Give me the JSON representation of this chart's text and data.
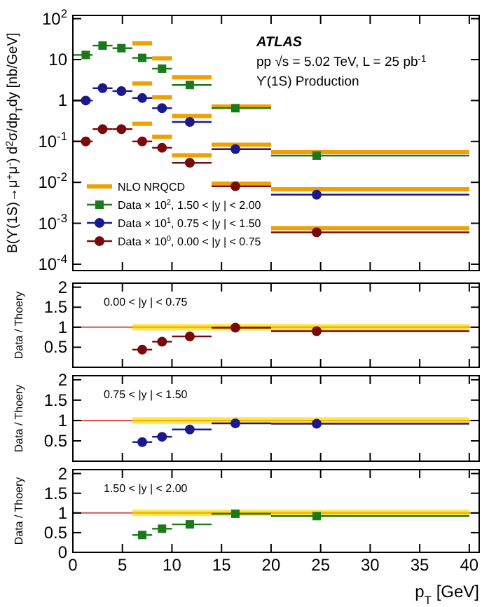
{
  "chart_data": [
    {
      "type": "scatter",
      "ylabel": "B(ϒ(1S)→μ$^{+}$μ$^{-}$) d$^{2}$σ/dp$_{T}$dy [nb/GeV]",
      "annotations": [
        "ATLAS",
        "pp √s = 5.02 TeV, L = 25 pb$^{-1}$",
        "ϒ(1S) Production"
      ],
      "log": true,
      "legend": "bottom left",
      "tick_labels": "y",
      "xlim": [
        0,
        41
      ],
      "ylim": [
        7e-05,
        120
      ],
      "yticks": [
        {
          "value": 0.0001,
          "label": "10$^{-4}$"
        },
        {
          "value": 0.001,
          "label": "10$^{-3}$"
        },
        {
          "value": 0.01,
          "label": "10$^{-2}$"
        },
        {
          "value": 0.1,
          "label": "10$^{-1}$"
        },
        1,
        10,
        {
          "value": 100,
          "label": "10$^{2}$"
        }
      ],
      "xticks": [
        0,
        5,
        10,
        15,
        20,
        25,
        30,
        35,
        40
      ],
      "series": [
        {
          "name": "NLO NRQCD",
          "type": "line",
          "color": "#f0a000",
          "x": [
            6,
            8
          ],
          "values": [
            25,
            25
          ]
        },
        {
          "type": "line",
          "color": "#f0a000",
          "x": [
            8,
            10
          ],
          "values": [
            10.7,
            10.7
          ]
        },
        {
          "type": "line",
          "color": "#f0a000",
          "x": [
            10,
            14
          ],
          "values": [
            3.7,
            3.7
          ]
        },
        {
          "type": "line",
          "color": "#f0a000",
          "x": [
            14,
            20
          ],
          "values": [
            0.71,
            0.71
          ]
        },
        {
          "type": "line",
          "color": "#f0a000",
          "x": [
            20,
            40
          ],
          "values": [
            0.055,
            0.055
          ]
        },
        {
          "type": "line",
          "color": "#f0a000",
          "x": [
            6,
            8
          ],
          "values": [
            2.6,
            2.6
          ]
        },
        {
          "type": "line",
          "color": "#f0a000",
          "x": [
            8,
            10
          ],
          "values": [
            1.2,
            1.2
          ]
        },
        {
          "type": "line",
          "color": "#f0a000",
          "x": [
            10,
            14
          ],
          "values": [
            0.42,
            0.42
          ]
        },
        {
          "type": "line",
          "color": "#f0a000",
          "x": [
            14,
            20
          ],
          "values": [
            0.083,
            0.083
          ]
        },
        {
          "type": "line",
          "color": "#f0a000",
          "x": [
            20,
            40
          ],
          "values": [
            0.0068,
            0.0068
          ]
        },
        {
          "type": "line",
          "color": "#f0a000",
          "x": [
            6,
            8
          ],
          "values": [
            0.27,
            0.27
          ]
        },
        {
          "type": "line",
          "color": "#f0a000",
          "x": [
            8,
            10
          ],
          "values": [
            0.13,
            0.13
          ]
        },
        {
          "type": "line",
          "color": "#f0a000",
          "x": [
            10,
            14
          ],
          "values": [
            0.046,
            0.046
          ]
        },
        {
          "type": "line",
          "color": "#f0a000",
          "x": [
            14,
            20
          ],
          "values": [
            0.0093,
            0.0093
          ]
        },
        {
          "type": "line",
          "color": "#f0a000",
          "x": [
            20,
            40
          ],
          "values": [
            0.00076,
            0.00076
          ]
        },
        {
          "name": "Data × 10$^{2}$, 1.50 < |y | < 2.00",
          "marker": "square",
          "color": "#1a7a1a",
          "x": [
            1.3,
            3,
            4.9,
            7,
            9,
            11.8,
            16.4,
            24.6
          ],
          "xerrors": [
            [
              0,
              2
            ],
            [
              2,
              4
            ],
            [
              4,
              6
            ],
            [
              6,
              8
            ],
            [
              8,
              10
            ],
            [
              10,
              14
            ],
            [
              14,
              20
            ],
            [
              20,
              40
            ]
          ],
          "values": [
            13,
            22,
            19,
            11,
            6,
            2.4,
            0.65,
            0.045
          ]
        },
        {
          "name": "Data × 10$^{1}$, 0.75 < |y | < 1.50",
          "marker": "circle",
          "color": "#1a1a8c",
          "x": [
            1.3,
            3,
            4.9,
            7,
            9,
            11.8,
            16.4,
            24.6
          ],
          "xerrors": [
            [
              0,
              2
            ],
            [
              2,
              4
            ],
            [
              4,
              6
            ],
            [
              6,
              8
            ],
            [
              8,
              10
            ],
            [
              10,
              14
            ],
            [
              14,
              20
            ],
            [
              20,
              40
            ]
          ],
          "values": [
            1.0,
            2.0,
            1.7,
            1.15,
            0.65,
            0.3,
            0.065,
            0.005
          ]
        },
        {
          "name": "Data × 10$^{0}$, 0.00 < |y | < 0.75",
          "marker": "circle",
          "color": "#7a0a0a",
          "x": [
            1.3,
            3,
            4.9,
            7,
            9,
            11.8,
            16.4,
            24.6
          ],
          "xerrors": [
            [
              0,
              2
            ],
            [
              2,
              4
            ],
            [
              4,
              6
            ],
            [
              6,
              8
            ],
            [
              8,
              10
            ],
            [
              10,
              14
            ],
            [
              14,
              20
            ],
            [
              20,
              40
            ]
          ],
          "values": [
            0.1,
            0.2,
            0.2,
            0.1,
            0.07,
            0.03,
            0.008,
            0.0006
          ]
        }
      ]
    },
    {
      "type": "scatter",
      "ylabel": "Data / Thoery",
      "annotations": [
        "0.00 < |y | < 0.75"
      ],
      "tick_labels": "y",
      "xlim": [
        0,
        41
      ],
      "ylim": [
        0,
        2.1
      ],
      "yticks": [
        0.5,
        1,
        1.5,
        2
      ],
      "xticks": [
        0,
        5,
        10,
        15,
        20,
        25,
        30,
        35,
        40
      ],
      "ref_lines": [
        {
          "axis": "y",
          "value": 1,
          "color": "#e05050"
        }
      ],
      "series": [
        {
          "type": "line",
          "color": "#f0b000",
          "x": [
            6,
            40
          ],
          "values": [
            1,
            1
          ],
          "lower": [
            0.92,
            0.92
          ],
          "upper": [
            1.08,
            1.08
          ]
        },
        {
          "marker": "circle",
          "color": "#7a0a0a",
          "x": [
            7,
            9,
            11.8,
            16.4,
            24.6
          ],
          "xerrors": [
            [
              6,
              8
            ],
            [
              8,
              10
            ],
            [
              10,
              14
            ],
            [
              14,
              20
            ],
            [
              20,
              40
            ]
          ],
          "values": [
            0.44,
            0.64,
            0.77,
            0.99,
            0.9
          ]
        }
      ]
    },
    {
      "type": "scatter",
      "ylabel": "Data / Thoery",
      "annotations": [
        "0.75 < |y | < 1.50"
      ],
      "tick_labels": "y",
      "xlim": [
        0,
        41
      ],
      "ylim": [
        0,
        2.1
      ],
      "yticks": [
        0.5,
        1,
        1.5,
        2
      ],
      "xticks": [
        0,
        5,
        10,
        15,
        20,
        25,
        30,
        35,
        40
      ],
      "ref_lines": [
        {
          "axis": "y",
          "value": 1,
          "color": "#e05050"
        }
      ],
      "series": [
        {
          "type": "line",
          "color": "#f0b000",
          "x": [
            6,
            40
          ],
          "values": [
            1,
            1
          ],
          "lower": [
            0.92,
            0.92
          ],
          "upper": [
            1.08,
            1.08
          ]
        },
        {
          "marker": "circle",
          "color": "#1a1a8c",
          "x": [
            7,
            9,
            11.8,
            16.4,
            24.6
          ],
          "xerrors": [
            [
              6,
              8
            ],
            [
              8,
              10
            ],
            [
              10,
              14
            ],
            [
              14,
              20
            ],
            [
              20,
              40
            ]
          ],
          "values": [
            0.47,
            0.6,
            0.78,
            0.93,
            0.92
          ]
        }
      ]
    },
    {
      "type": "scatter",
      "ylabel": "Data / Thoery",
      "xlabel": "p$_{T}$ [GeV]",
      "annotations": [
        "1.50 < |y | < 2.00"
      ],
      "xlim": [
        0,
        41
      ],
      "ylim": [
        0,
        2.1
      ],
      "yticks": [
        0,
        0.5,
        1,
        1.5,
        2
      ],
      "xticks": [
        0,
        5,
        10,
        15,
        20,
        25,
        30,
        35,
        40
      ],
      "ref_lines": [
        {
          "axis": "y",
          "value": 1,
          "color": "#e05050"
        }
      ],
      "series": [
        {
          "type": "line",
          "color": "#f0b000",
          "x": [
            6,
            40
          ],
          "values": [
            1,
            1
          ],
          "lower": [
            0.92,
            0.92
          ],
          "upper": [
            1.08,
            1.08
          ]
        },
        {
          "marker": "square",
          "color": "#1a7a1a",
          "x": [
            7,
            9,
            11.8,
            16.4,
            24.6
          ],
          "xerrors": [
            [
              6,
              8
            ],
            [
              8,
              10
            ],
            [
              10,
              14
            ],
            [
              14,
              20
            ],
            [
              20,
              40
            ]
          ],
          "values": [
            0.44,
            0.6,
            0.71,
            0.98,
            0.92
          ]
        }
      ]
    }
  ]
}
